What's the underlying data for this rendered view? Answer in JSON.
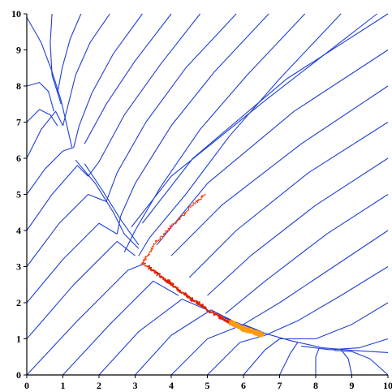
{
  "chart_data": {
    "type": "line",
    "title": "",
    "xlabel": "",
    "ylabel": "",
    "xlim": [
      0,
      10
    ],
    "ylim": [
      0,
      10
    ],
    "x_ticks": [
      0,
      1,
      2,
      3,
      4,
      5,
      6,
      7,
      8,
      9,
      10
    ],
    "y_ticks": [
      0,
      1,
      2,
      3,
      4,
      5,
      6,
      7,
      8,
      9,
      10
    ],
    "x_tick_labels": [
      "0",
      "1",
      "2",
      "3",
      "4",
      "5",
      "6",
      "7",
      "8",
      "9",
      "10"
    ],
    "y_tick_labels": [
      "0",
      "1",
      "2",
      "3",
      "4",
      "5",
      "6",
      "7",
      "8",
      "9",
      "10"
    ],
    "grid": false,
    "colors": {
      "trajectories": "#1f3fd6",
      "stochastic_path_start": "#ff3300",
      "stochastic_path_dense": "#e02000",
      "stochastic_path_end": "#ff9a10"
    },
    "series": [
      {
        "kind": "deterministic_trajectories",
        "color": "#1f3fd6",
        "lines": [
          [
            [
              0.0,
              9.9
            ],
            [
              0.4,
              9.2
            ],
            [
              0.7,
              8.4
            ],
            [
              0.95,
              7.6
            ],
            [
              1.25,
              6.3
            ]
          ],
          [
            [
              0.7,
              10.0
            ],
            [
              0.65,
              9.2
            ],
            [
              0.7,
              8.3
            ],
            [
              0.95,
              7.5
            ]
          ],
          [
            [
              1.5,
              10.0
            ],
            [
              1.2,
              9.3
            ],
            [
              0.98,
              8.5
            ],
            [
              0.85,
              7.8
            ]
          ],
          [
            [
              2.3,
              10.0
            ],
            [
              1.75,
              9.2
            ],
            [
              1.35,
              8.3
            ],
            [
              1.15,
              7.5
            ],
            [
              1.0,
              6.9
            ]
          ],
          [
            [
              3.2,
              10.0
            ],
            [
              2.4,
              8.9
            ],
            [
              1.8,
              7.8
            ],
            [
              1.45,
              6.9
            ],
            [
              1.3,
              6.3
            ]
          ],
          [
            [
              4.0,
              10.0
            ],
            [
              3.0,
              8.7
            ],
            [
              2.2,
              7.5
            ],
            [
              1.6,
              6.4
            ]
          ],
          [
            [
              0.0,
              8.0
            ],
            [
              0.35,
              8.1
            ],
            [
              0.6,
              7.85
            ],
            [
              0.75,
              7.3
            ]
          ],
          [
            [
              0.0,
              7.0
            ],
            [
              0.35,
              7.35
            ],
            [
              0.65,
              7.2
            ],
            [
              0.85,
              6.9
            ]
          ],
          [
            [
              0.0,
              6.0
            ],
            [
              0.4,
              6.8
            ],
            [
              0.8,
              7.3
            ],
            [
              1.0,
              6.9
            ]
          ],
          [
            [
              1.35,
              5.95
            ],
            [
              1.9,
              5.3
            ],
            [
              2.4,
              4.5
            ],
            [
              2.7,
              3.9
            ],
            [
              3.1,
              3.5
            ]
          ],
          [
            [
              4.8,
              10.0
            ],
            [
              3.7,
              8.6
            ],
            [
              2.7,
              7.2
            ],
            [
              2.0,
              5.9
            ],
            [
              1.7,
              5.5
            ]
          ],
          [
            [
              5.8,
              10.0
            ],
            [
              4.4,
              8.5
            ],
            [
              3.3,
              7.0
            ],
            [
              2.5,
              5.6
            ],
            [
              2.2,
              4.8
            ]
          ],
          [
            [
              6.7,
              10.0
            ],
            [
              5.2,
              8.4
            ],
            [
              4.0,
              6.9
            ],
            [
              3.0,
              5.3
            ],
            [
              2.6,
              4.4
            ],
            [
              2.5,
              3.9
            ]
          ],
          [
            [
              7.7,
              10.0
            ],
            [
              6.1,
              8.3
            ],
            [
              4.8,
              6.8
            ],
            [
              3.7,
              5.2
            ],
            [
              3.0,
              4.0
            ],
            [
              2.7,
              3.4
            ]
          ],
          [
            [
              8.7,
              10.0
            ],
            [
              7.0,
              8.2
            ],
            [
              5.6,
              6.6
            ],
            [
              4.4,
              5.0
            ],
            [
              3.4,
              3.8
            ],
            [
              3.1,
              3.3
            ]
          ],
          [
            [
              0.0,
              5.0
            ],
            [
              0.5,
              5.7
            ],
            [
              1.0,
              6.2
            ],
            [
              1.3,
              6.3
            ]
          ],
          [
            [
              0.0,
              4.0
            ],
            [
              0.7,
              5.0
            ],
            [
              1.4,
              5.8
            ],
            [
              1.7,
              5.5
            ]
          ],
          [
            [
              0.0,
              3.0
            ],
            [
              0.9,
              4.2
            ],
            [
              1.7,
              5.0
            ],
            [
              2.2,
              4.8
            ]
          ],
          [
            [
              0.0,
              2.0
            ],
            [
              1.0,
              3.2
            ],
            [
              2.0,
              4.2
            ],
            [
              2.5,
              3.9
            ]
          ],
          [
            [
              0.0,
              1.0
            ],
            [
              1.3,
              2.5
            ],
            [
              2.5,
              3.7
            ],
            [
              3.0,
              3.3
            ]
          ],
          [
            [
              0.0,
              0.0
            ],
            [
              1.4,
              1.5
            ],
            [
              2.8,
              2.9
            ],
            [
              3.3,
              3.1
            ]
          ],
          [
            [
              1.0,
              0.0
            ],
            [
              2.3,
              1.4
            ],
            [
              3.5,
              2.6
            ],
            [
              4.2,
              2.2
            ]
          ],
          [
            [
              2.0,
              0.0
            ],
            [
              3.1,
              1.2
            ],
            [
              4.3,
              2.1
            ],
            [
              5.0,
              1.8
            ]
          ],
          [
            [
              3.0,
              0.0
            ],
            [
              4.0,
              1.1
            ],
            [
              5.1,
              1.8
            ],
            [
              5.7,
              1.5
            ]
          ],
          [
            [
              4.0,
              0.0
            ],
            [
              5.0,
              1.0
            ],
            [
              6.0,
              1.4
            ],
            [
              6.5,
              1.2
            ]
          ],
          [
            [
              5.0,
              0.0
            ],
            [
              5.9,
              0.9
            ],
            [
              6.6,
              1.1
            ]
          ],
          [
            [
              6.0,
              0.0
            ],
            [
              6.6,
              0.7
            ],
            [
              7.0,
              1.0
            ]
          ],
          [
            [
              7.0,
              0.0
            ],
            [
              7.3,
              0.6
            ],
            [
              7.5,
              0.9
            ]
          ],
          [
            [
              8.0,
              0.0
            ],
            [
              8.0,
              0.5
            ],
            [
              8.1,
              0.75
            ]
          ],
          [
            [
              9.0,
              0.0
            ],
            [
              8.9,
              0.45
            ],
            [
              8.7,
              0.7
            ]
          ],
          [
            [
              10.0,
              0.0
            ],
            [
              9.5,
              0.45
            ],
            [
              9.0,
              0.65
            ],
            [
              8.5,
              0.68
            ]
          ],
          [
            [
              10.0,
              1.0
            ],
            [
              9.2,
              0.75
            ],
            [
              8.4,
              0.7
            ],
            [
              7.6,
              0.8
            ]
          ],
          [
            [
              10.0,
              2.0
            ],
            [
              9.0,
              1.4
            ],
            [
              8.0,
              1.0
            ],
            [
              7.0,
              1.0
            ]
          ],
          [
            [
              10.0,
              3.0
            ],
            [
              8.7,
              2.2
            ],
            [
              7.5,
              1.5
            ],
            [
              6.6,
              1.1
            ]
          ],
          [
            [
              10.0,
              4.0
            ],
            [
              8.5,
              3.0
            ],
            [
              7.0,
              2.0
            ],
            [
              6.0,
              1.4
            ]
          ],
          [
            [
              10.0,
              5.0
            ],
            [
              8.3,
              3.9
            ],
            [
              6.6,
              2.6
            ],
            [
              5.5,
              1.7
            ]
          ],
          [
            [
              10.0,
              6.0
            ],
            [
              8.0,
              4.7
            ],
            [
              6.2,
              3.3
            ],
            [
              5.0,
              2.2
            ]
          ],
          [
            [
              10.0,
              7.0
            ],
            [
              7.8,
              5.6
            ],
            [
              5.8,
              4.0
            ],
            [
              4.5,
              2.7
            ]
          ],
          [
            [
              10.0,
              8.0
            ],
            [
              7.6,
              6.4
            ],
            [
              5.4,
              4.7
            ],
            [
              4.0,
              3.3
            ]
          ],
          [
            [
              10.0,
              9.0
            ],
            [
              7.4,
              7.3
            ],
            [
              5.0,
              5.3
            ],
            [
              3.6,
              3.6
            ]
          ],
          [
            [
              10.0,
              10.0
            ],
            [
              7.2,
              8.2
            ],
            [
              4.6,
              6.0
            ],
            [
              3.2,
              4.2
            ]
          ],
          [
            [
              9.7,
              10.0
            ],
            [
              6.6,
              7.6
            ],
            [
              4.0,
              5.5
            ],
            [
              2.9,
              4.1
            ]
          ],
          [
            [
              1.6,
              5.85
            ],
            [
              2.1,
              5.1
            ],
            [
              2.6,
              4.3
            ],
            [
              3.1,
              3.6
            ]
          ],
          [
            [
              5.3,
              1.65
            ],
            [
              6.0,
              1.38
            ],
            [
              6.6,
              1.15
            ],
            [
              7.3,
              0.95
            ],
            [
              8.2,
              0.75
            ],
            [
              9.0,
              0.68
            ],
            [
              10.0,
              0.62
            ]
          ]
        ]
      },
      {
        "kind": "stochastic_path",
        "color": "#ff3300",
        "points": [
          [
            4.95,
            5.0
          ],
          [
            4.7,
            4.8
          ],
          [
            4.4,
            4.5
          ],
          [
            4.1,
            4.2
          ],
          [
            3.85,
            3.95
          ],
          [
            3.6,
            3.7
          ],
          [
            3.45,
            3.45
          ],
          [
            3.3,
            3.25
          ],
          [
            3.2,
            3.1
          ],
          [
            3.35,
            3.0
          ],
          [
            3.55,
            2.85
          ],
          [
            3.75,
            2.7
          ],
          [
            3.9,
            2.6
          ],
          [
            4.05,
            2.5
          ],
          [
            4.2,
            2.35
          ],
          [
            4.35,
            2.25
          ],
          [
            4.5,
            2.15
          ],
          [
            4.65,
            2.05
          ],
          [
            4.8,
            1.95
          ],
          [
            5.0,
            1.8
          ],
          [
            5.2,
            1.7
          ],
          [
            5.35,
            1.6
          ],
          [
            5.5,
            1.52
          ],
          [
            5.65,
            1.45
          ],
          [
            5.8,
            1.38
          ],
          [
            5.95,
            1.3
          ],
          [
            6.1,
            1.25
          ],
          [
            6.25,
            1.2
          ],
          [
            6.4,
            1.15
          ],
          [
            6.5,
            1.1
          ]
        ]
      }
    ]
  }
}
